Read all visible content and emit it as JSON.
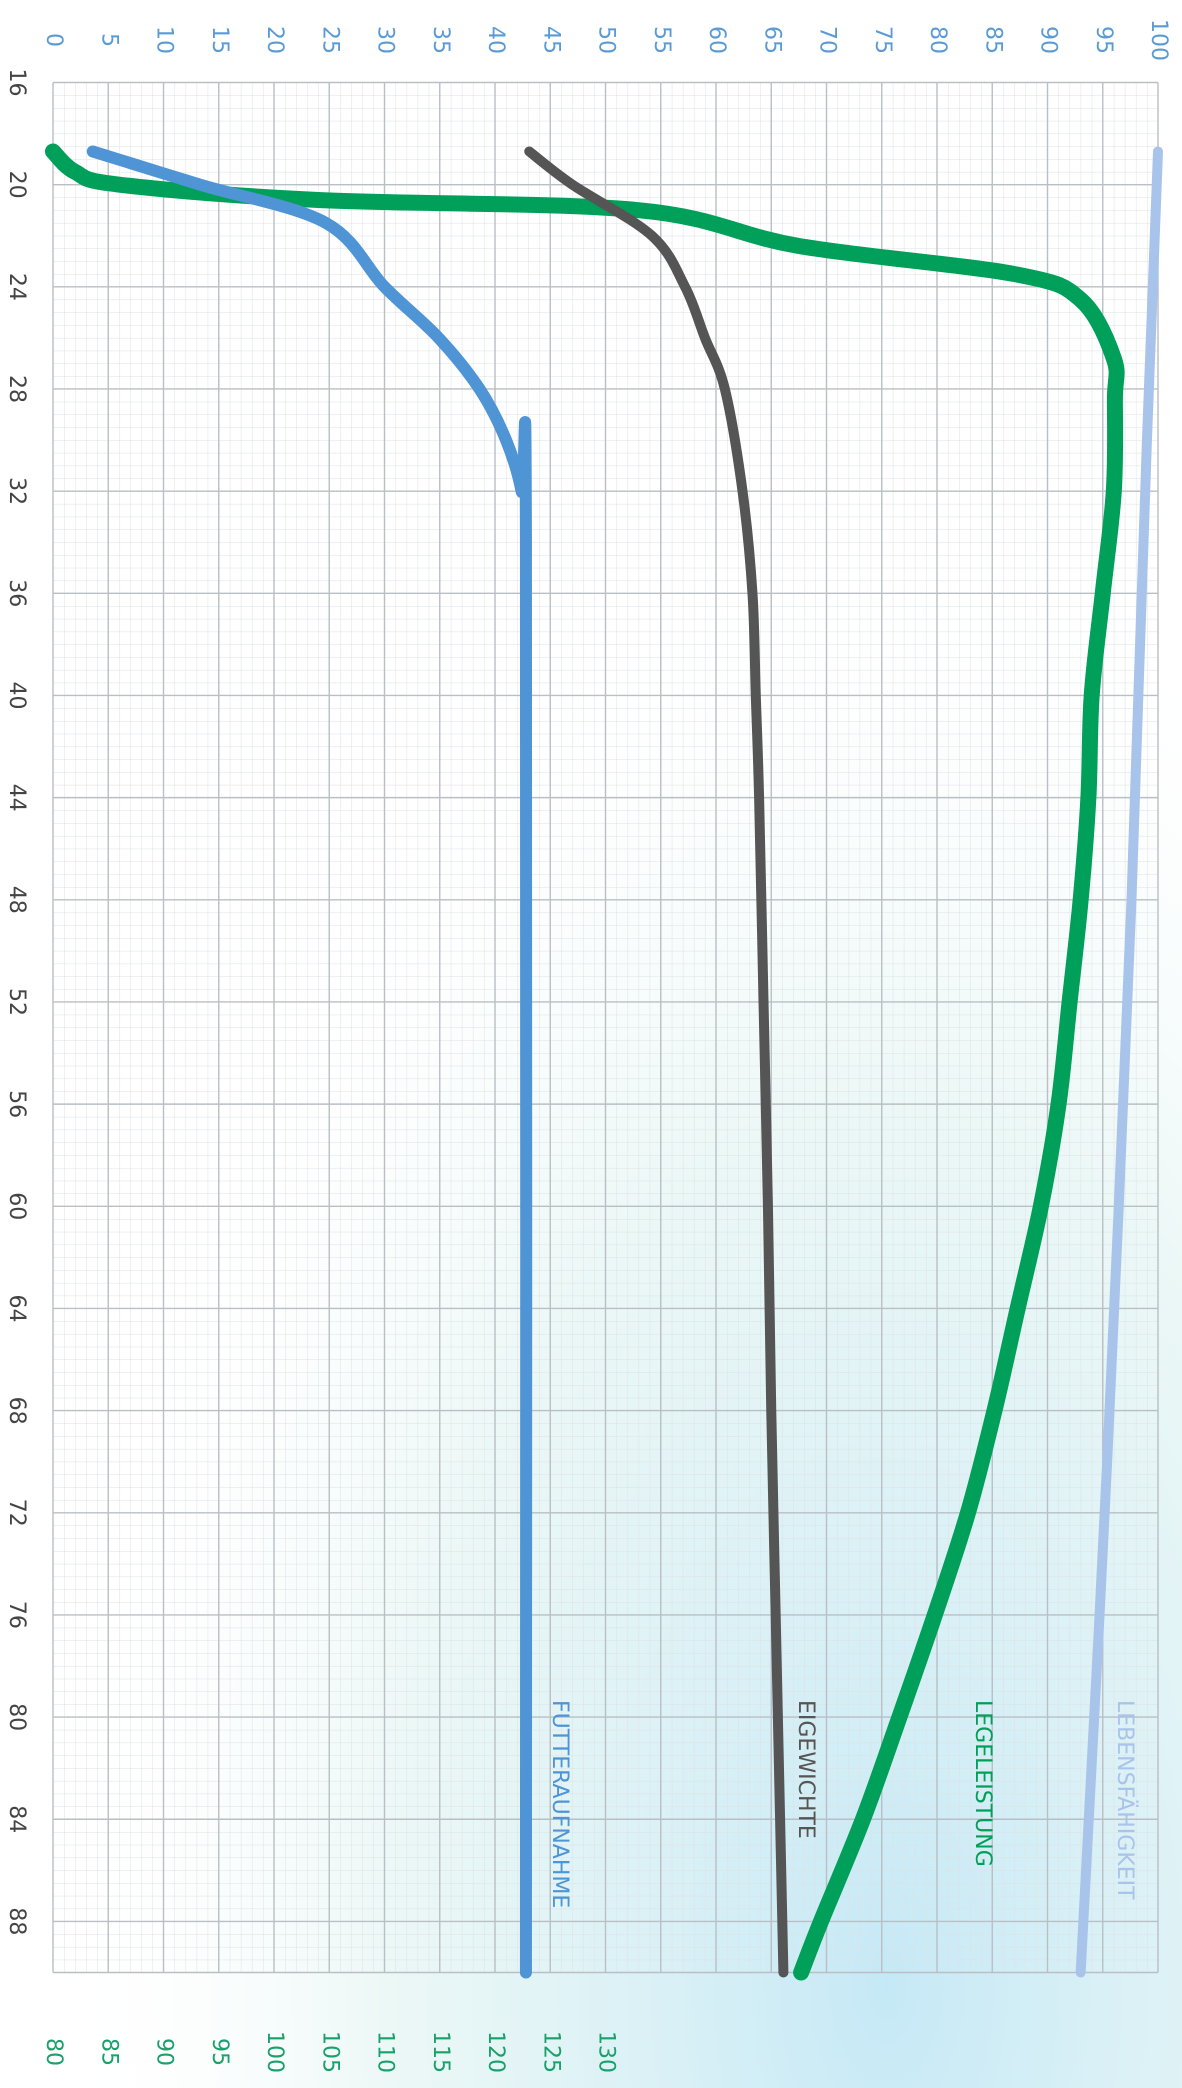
{
  "chart_data": {
    "type": "line",
    "orientation": "rotated",
    "xlim": [
      16,
      90
    ],
    "xticks": [
      16,
      20,
      24,
      28,
      32,
      36,
      40,
      44,
      48,
      52,
      56,
      60,
      64,
      68,
      72,
      76,
      80,
      84,
      88
    ],
    "ylim": [
      0,
      100
    ],
    "yticks": [
      0,
      5,
      10,
      15,
      20,
      25,
      30,
      35,
      40,
      45,
      50,
      55,
      60,
      65,
      70,
      75,
      80,
      85,
      90,
      95,
      100
    ],
    "y2lim": [
      80,
      180
    ],
    "y2ticks": [
      80,
      85,
      90,
      95,
      100,
      105,
      110,
      115,
      120,
      125,
      130
    ],
    "ytick_color": "#5b9bd5",
    "y2tick_color": "#1aa06a",
    "xtick_color": "#444444",
    "grid": true,
    "series": [
      {
        "name": "LEBENSFÄHIGKEIT",
        "color": "#a9c4ea",
        "width": 10,
        "x": [
          18.7,
          30,
          48,
          70,
          90
        ],
        "values": [
          100,
          99,
          97.6,
          95.4,
          93
        ]
      },
      {
        "name": "LEGELEISTUNG",
        "color": "#00a05a",
        "width": 16,
        "x": [
          18.7,
          19.5,
          20,
          20.6,
          21,
          22.4,
          23.5,
          24.5,
          26.8,
          28.4,
          32,
          36,
          40,
          44,
          48,
          52,
          56,
          60,
          64,
          68,
          72,
          76,
          80,
          84,
          88,
          90
        ],
        "values": [
          0,
          2,
          6,
          24,
          53,
          67.5,
          87,
          93,
          96,
          96.1,
          96,
          95,
          94,
          93.7,
          93,
          92,
          91,
          89.4,
          87.3,
          85.2,
          82.8,
          79.8,
          76.6,
          73.3,
          69.5,
          67.7
        ]
      },
      {
        "name": "EIGEWICHTE",
        "color": "#555555",
        "width": 10,
        "x": [
          18.7,
          20,
          22,
          24,
          26,
          28,
          32,
          36,
          40,
          44,
          52,
          60,
          68,
          76,
          84,
          90
        ],
        "values": [
          43.1,
          47,
          54.2,
          57.2,
          59,
          60.8,
          62.4,
          63.3,
          63.6,
          63.9,
          64.3,
          64.7,
          65,
          65.4,
          65.8,
          66.1
        ]
      },
      {
        "name": "FUTTERAUFNAHME",
        "color": "#4f94d4",
        "width": 12,
        "axis": "y2",
        "x": [
          18.7,
          20,
          21.5,
          24,
          26,
          28,
          30,
          32,
          34,
          90
        ],
        "values": [
          83.6,
          93.3,
          104.7,
          110,
          114.9,
          118.6,
          121,
          122.4,
          122.8,
          122.8
        ]
      }
    ]
  }
}
